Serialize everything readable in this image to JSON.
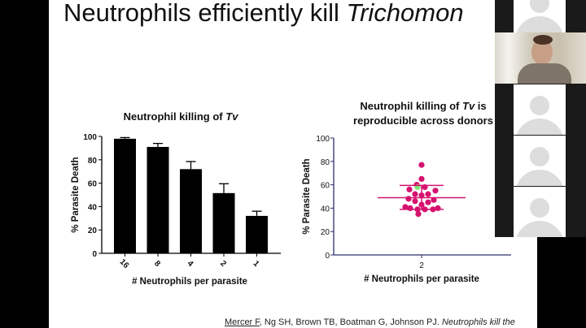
{
  "slide": {
    "title_plain": "Neutrophils efficiently kill ",
    "title_italic": "Trichomon",
    "citation_author": "Mercer F",
    "citation_rest": ", Ng SH, Brown TB, Boatman G, Johnson PJ. ",
    "citation_italic": "Neutrophils kill the"
  },
  "chart_data": [
    {
      "type": "bar",
      "title": "Neutrophil killing of ",
      "title_italic": "Tv",
      "xlabel": "# Neutrophils per parasite",
      "ylabel": "% Parasite Death",
      "ylim": [
        0,
        100
      ],
      "yticks": [
        "0",
        "20",
        "40",
        "60",
        "80",
        "100"
      ],
      "categories": [
        "16",
        "8",
        "4",
        "2",
        "1"
      ],
      "values": [
        98,
        91,
        72,
        51.5,
        32
      ],
      "errors": [
        1,
        3,
        6.5,
        8,
        4
      ],
      "color": "#000000"
    },
    {
      "type": "scatter",
      "title_line1": "Neutrophil killing of ",
      "title_italic": "Tv",
      "title_line1_end": " is",
      "title_line2": "reproducible across donors",
      "xlabel": "# Neutrophils per parasite",
      "ylabel": "% Parasite Death",
      "ylim": [
        0,
        100
      ],
      "yticks": [
        "0",
        "20",
        "40",
        "60",
        "80",
        "100"
      ],
      "categories": [
        "2"
      ],
      "values": [
        77,
        65,
        60,
        58,
        56,
        55,
        52,
        52,
        51,
        48,
        47,
        46,
        45,
        43,
        41,
        40,
        40,
        39,
        39,
        39,
        35
      ],
      "highlight_value": 58,
      "mean": 49,
      "sd_upper": 59.5,
      "sd_lower": 39,
      "color": "#d6126f",
      "highlight_color": "#7de87a",
      "axis_color": "#2e2e6e"
    }
  ],
  "video_strip": {
    "participants": [
      "participant-1",
      "speaker-camera",
      "participant-2",
      "participant-3",
      "participant-4"
    ]
  }
}
